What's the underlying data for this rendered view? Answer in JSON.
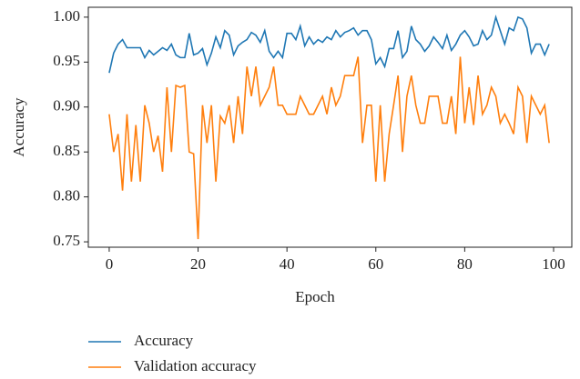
{
  "chart_data": {
    "type": "line",
    "x_label": "Epoch",
    "y_label": "Accuracy",
    "x": [
      0,
      1,
      2,
      3,
      4,
      5,
      6,
      7,
      8,
      9,
      10,
      11,
      12,
      13,
      14,
      15,
      16,
      17,
      18,
      19,
      20,
      21,
      22,
      23,
      24,
      25,
      26,
      27,
      28,
      29,
      30,
      31,
      32,
      33,
      34,
      35,
      36,
      37,
      38,
      39,
      40,
      41,
      42,
      43,
      44,
      45,
      46,
      47,
      48,
      49,
      50,
      51,
      52,
      53,
      54,
      55,
      56,
      57,
      58,
      59,
      60,
      61,
      62,
      63,
      64,
      65,
      66,
      67,
      68,
      69,
      70,
      71,
      72,
      73,
      74,
      75,
      76,
      77,
      78,
      79,
      80,
      81,
      82,
      83,
      84,
      85,
      86,
      87,
      88,
      89,
      90,
      91,
      92,
      93,
      94,
      95,
      96,
      97,
      98,
      99
    ],
    "series": [
      {
        "name": "Accuracy",
        "color": "#1f77b4",
        "values": [
          0.938,
          0.96,
          0.97,
          0.975,
          0.966,
          0.966,
          0.966,
          0.966,
          0.955,
          0.963,
          0.958,
          0.962,
          0.966,
          0.963,
          0.97,
          0.958,
          0.955,
          0.955,
          0.982,
          0.958,
          0.96,
          0.965,
          0.947,
          0.96,
          0.978,
          0.966,
          0.985,
          0.98,
          0.958,
          0.968,
          0.972,
          0.975,
          0.983,
          0.98,
          0.972,
          0.985,
          0.962,
          0.955,
          0.962,
          0.955,
          0.982,
          0.982,
          0.975,
          0.99,
          0.968,
          0.978,
          0.97,
          0.975,
          0.972,
          0.978,
          0.975,
          0.985,
          0.978,
          0.983,
          0.985,
          0.988,
          0.98,
          0.985,
          0.985,
          0.975,
          0.948,
          0.955,
          0.945,
          0.965,
          0.965,
          0.985,
          0.955,
          0.962,
          0.99,
          0.975,
          0.97,
          0.962,
          0.968,
          0.978,
          0.972,
          0.965,
          0.98,
          0.963,
          0.97,
          0.98,
          0.985,
          0.978,
          0.968,
          0.97,
          0.985,
          0.975,
          0.98,
          1.0,
          0.985,
          0.97,
          0.988,
          0.985,
          1.0,
          0.998,
          0.988,
          0.96,
          0.97,
          0.97,
          0.958,
          0.97
        ]
      },
      {
        "name": "Validation accuracy",
        "color": "#ff7f0e",
        "values": [
          0.892,
          0.85,
          0.87,
          0.807,
          0.892,
          0.817,
          0.88,
          0.817,
          0.902,
          0.882,
          0.85,
          0.868,
          0.828,
          0.922,
          0.85,
          0.924,
          0.922,
          0.924,
          0.85,
          0.848,
          0.753,
          0.902,
          0.86,
          0.902,
          0.817,
          0.89,
          0.882,
          0.902,
          0.86,
          0.912,
          0.87,
          0.945,
          0.912,
          0.945,
          0.902,
          0.912,
          0.922,
          0.945,
          0.902,
          0.902,
          0.892,
          0.892,
          0.892,
          0.912,
          0.902,
          0.892,
          0.892,
          0.902,
          0.912,
          0.892,
          0.922,
          0.902,
          0.912,
          0.935,
          0.935,
          0.935,
          0.956,
          0.86,
          0.902,
          0.902,
          0.817,
          0.902,
          0.817,
          0.87,
          0.902,
          0.935,
          0.85,
          0.912,
          0.935,
          0.902,
          0.882,
          0.882,
          0.912,
          0.912,
          0.912,
          0.882,
          0.882,
          0.912,
          0.87,
          0.956,
          0.882,
          0.922,
          0.88,
          0.935,
          0.892,
          0.902,
          0.922,
          0.912,
          0.882,
          0.892,
          0.882,
          0.87,
          0.922,
          0.912,
          0.86,
          0.912,
          0.902,
          0.892,
          0.902,
          0.86
        ]
      }
    ],
    "xlim": [
      -4.7,
      104.1
    ],
    "xticks": [
      0,
      20,
      40,
      60,
      80,
      100
    ],
    "ylim": [
      0.744,
      1.011
    ],
    "yticks": [
      {
        "value": 0.75,
        "label": "0.75"
      },
      {
        "value": 0.8,
        "label": "0.80"
      },
      {
        "value": 0.85,
        "label": "0.85"
      },
      {
        "value": 0.9,
        "label": "0.90"
      },
      {
        "value": 0.95,
        "label": "0.95"
      },
      {
        "value": 1.0,
        "label": "1.00"
      }
    ],
    "grid": false,
    "legend": "bottom left"
  }
}
